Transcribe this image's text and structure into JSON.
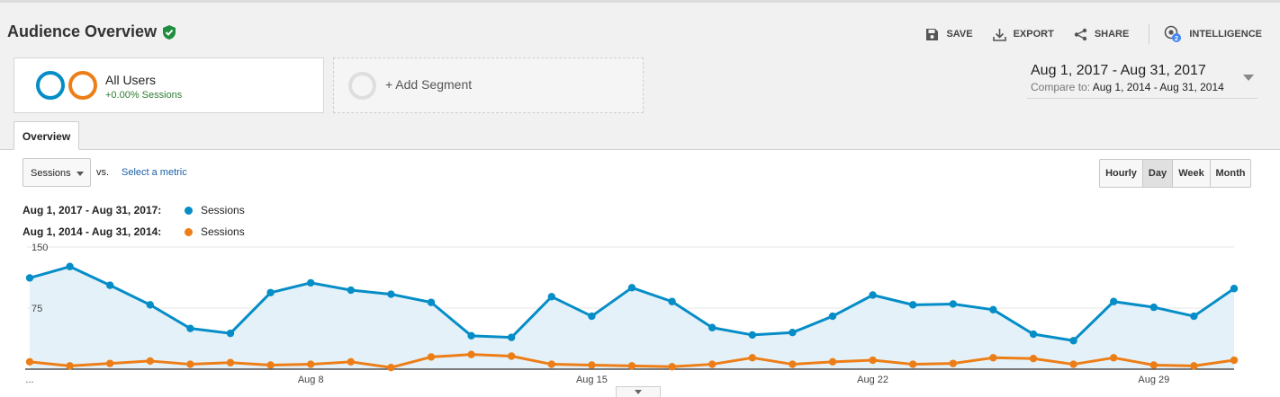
{
  "header": {
    "title": "Audience Overview",
    "actions": [
      {
        "label": "SAVE",
        "icon": "floppy-disk-icon"
      },
      {
        "label": "EXPORT",
        "icon": "download-icon"
      },
      {
        "label": "SHARE",
        "icon": "share-icon"
      },
      {
        "label": "INTELLIGENCE",
        "icon": "intelligence-icon",
        "badge": "2"
      }
    ]
  },
  "segments": {
    "primary": {
      "name": "All Users",
      "subtitle": "+0.00% Sessions"
    },
    "add_label": "+ Add Segment"
  },
  "date_range": {
    "main": "Aug 1, 2017 - Aug 31, 2017",
    "compare_label": "Compare to:",
    "compare_value": "Aug 1, 2014 - Aug 31, 2014"
  },
  "tabs": [
    {
      "label": "Overview"
    }
  ],
  "metric_selector": {
    "selected": "Sessions",
    "vs": "vs.",
    "secondary_link": "Select a metric"
  },
  "granularity": {
    "options": [
      "Hourly",
      "Day",
      "Week",
      "Month"
    ],
    "active": "Day"
  },
  "legend": [
    {
      "range": "Aug 1, 2017 - Aug 31, 2017:",
      "series": "Sessions",
      "color": "#058dc7"
    },
    {
      "range": "Aug 1, 2014 - Aug 31, 2014:",
      "series": "Sessions",
      "color": "#ed7e17"
    }
  ],
  "chart_data": {
    "type": "line",
    "ylim": [
      0,
      150
    ],
    "yticks": [
      "75",
      "150"
    ],
    "xtick_labels": [
      "...",
      "Aug 8",
      "Aug 15",
      "Aug 22",
      "Aug 29"
    ],
    "x": [
      1,
      2,
      3,
      4,
      5,
      6,
      7,
      8,
      9,
      10,
      11,
      12,
      13,
      14,
      15,
      16,
      17,
      18,
      19,
      20,
      21,
      22,
      23,
      24,
      25,
      26,
      27,
      28,
      29,
      30,
      31
    ],
    "series": [
      {
        "name": "Sessions",
        "period": "Aug 1, 2017 - Aug 31, 2017",
        "color": "#058dc7",
        "fill": true,
        "values": [
          112,
          126,
          103,
          79,
          50,
          44,
          94,
          106,
          97,
          92,
          82,
          41,
          39,
          89,
          65,
          100,
          83,
          51,
          42,
          45,
          65,
          91,
          79,
          80,
          73,
          43,
          35,
          83,
          76,
          65,
          99
        ]
      },
      {
        "name": "Sessions",
        "period": "Aug 1, 2014 - Aug 31, 2014",
        "color": "#ed7e17",
        "fill": false,
        "values": [
          9,
          4,
          7,
          10,
          6,
          8,
          5,
          6,
          9,
          2,
          15,
          18,
          16,
          6,
          5,
          4,
          3,
          6,
          14,
          6,
          9,
          11,
          6,
          7,
          14,
          13,
          6,
          14,
          5,
          4,
          11
        ]
      }
    ]
  }
}
